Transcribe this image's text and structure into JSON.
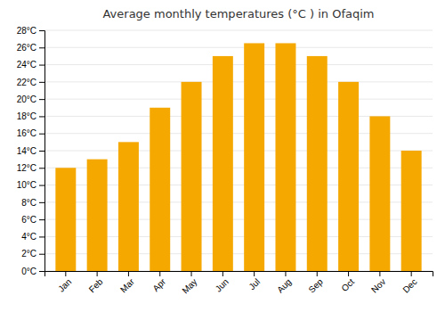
{
  "chart_data": {
    "type": "bar",
    "title": "Average monthly temperatures (°C ) in Ofaqim",
    "categories": [
      "Jan",
      "Feb",
      "Mar",
      "Apr",
      "May",
      "Jun",
      "Jul",
      "Aug",
      "Sep",
      "Oct",
      "Nov",
      "Dec"
    ],
    "values": [
      12,
      13,
      15,
      19,
      22,
      25,
      26.5,
      26.5,
      25,
      22,
      18,
      14
    ],
    "color": "#F5A800",
    "ylim": [
      0,
      28
    ],
    "yticks": [
      {
        "value": 0,
        "label": "0°C"
      },
      {
        "value": 2,
        "label": "2°C"
      },
      {
        "value": 4,
        "label": "4°C"
      },
      {
        "value": 6,
        "label": "6°C"
      },
      {
        "value": 8,
        "label": "8°C"
      },
      {
        "value": 10,
        "label": "10°C"
      },
      {
        "value": 12,
        "label": "12°C"
      },
      {
        "value": 14,
        "label": "14°C"
      },
      {
        "value": 16,
        "label": "16°C"
      },
      {
        "value": 18,
        "label": "18°C"
      },
      {
        "value": 20,
        "label": "20°C"
      },
      {
        "value": 22,
        "label": "22°C"
      },
      {
        "value": 24,
        "label": "24°C"
      },
      {
        "value": 26,
        "label": "26°C"
      },
      {
        "value": 28,
        "label": "28°C"
      }
    ],
    "grid": true
  }
}
